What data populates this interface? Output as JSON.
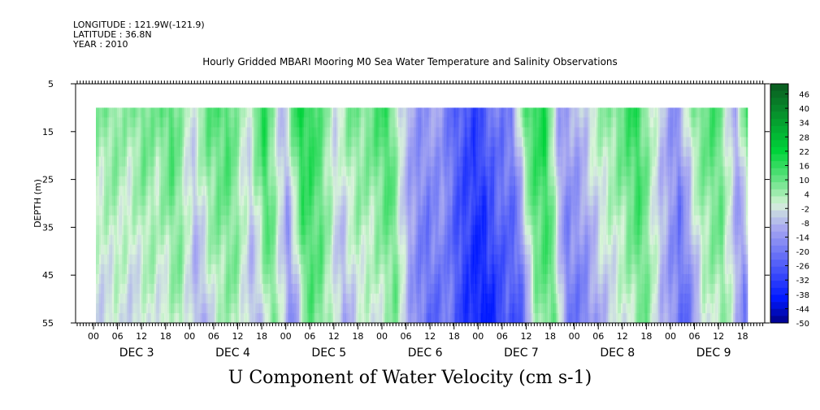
{
  "header": {
    "longitude": "LONGITUDE : 121.9W(-121.9)",
    "latitude": "LATITUDE : 36.8N",
    "year": "YEAR : 2010",
    "title": "Hourly Gridded MBARI Mooring M0 Sea Water Temperature and Salinity Observations"
  },
  "caption": "U Component of Water Velocity (cm s-1)",
  "colors": {
    "negative": "#0018ff",
    "near_zero": "#d8f4d8",
    "positive": "#00d33a",
    "colorbar_dark_blue": "#000088",
    "colorbar_dark_green": "#0b5a20"
  },
  "chart_data": {
    "type": "heatmap",
    "title": "Hourly Gridded MBARI Mooring M0 Sea Water Temperature and Salinity Observations",
    "xlabel": "",
    "ylabel": "DEPTH (m)",
    "variable": "U Component of Water Velocity (cm s-1)",
    "x_axis": {
      "hour_ticks": [
        "00",
        "06",
        "12",
        "18",
        "00",
        "06",
        "12",
        "18",
        "00",
        "06",
        "12",
        "18",
        "00",
        "06",
        "12",
        "18",
        "00",
        "06",
        "12",
        "18",
        "00",
        "06",
        "12",
        "18",
        "00",
        "06",
        "12",
        "18"
      ],
      "day_labels": [
        "DEC 3",
        "DEC 4",
        "DEC 5",
        "DEC 6",
        "DEC 7",
        "DEC 8",
        "DEC 9"
      ]
    },
    "y_axis": {
      "range": [
        5,
        55
      ],
      "ticks": [
        5,
        15,
        25,
        35,
        45,
        55
      ],
      "inverted": true
    },
    "data_depth_range": [
      10,
      55
    ],
    "data_time_range_hours_from_dec3_00": [
      0.6,
      163
    ],
    "colorbar": {
      "min": -50,
      "max": 50,
      "labels": [
        46,
        40,
        34,
        28,
        22,
        16,
        10,
        4,
        -2,
        -8,
        -14,
        -20,
        -26,
        -32,
        -38,
        -44,
        -50
      ]
    },
    "time_profile": {
      "hours": [
        1,
        4,
        8,
        12,
        15,
        19,
        24,
        28,
        33,
        38,
        42,
        47,
        51,
        55,
        60,
        64,
        68,
        73,
        77,
        81,
        86,
        90,
        95,
        100,
        104,
        108,
        112,
        116,
        120,
        125,
        130,
        135,
        140,
        145,
        150,
        155,
        160,
        163
      ],
      "u_cm_s": [
        5,
        8,
        4,
        10,
        6,
        14,
        -3,
        10,
        14,
        -2,
        18,
        -8,
        20,
        16,
        -2,
        8,
        8,
        16,
        -6,
        -15,
        -12,
        -25,
        -32,
        -20,
        -18,
        14,
        20,
        -12,
        -10,
        2,
        8,
        18,
        -2,
        -16,
        8,
        14,
        -10,
        14
      ]
    }
  }
}
